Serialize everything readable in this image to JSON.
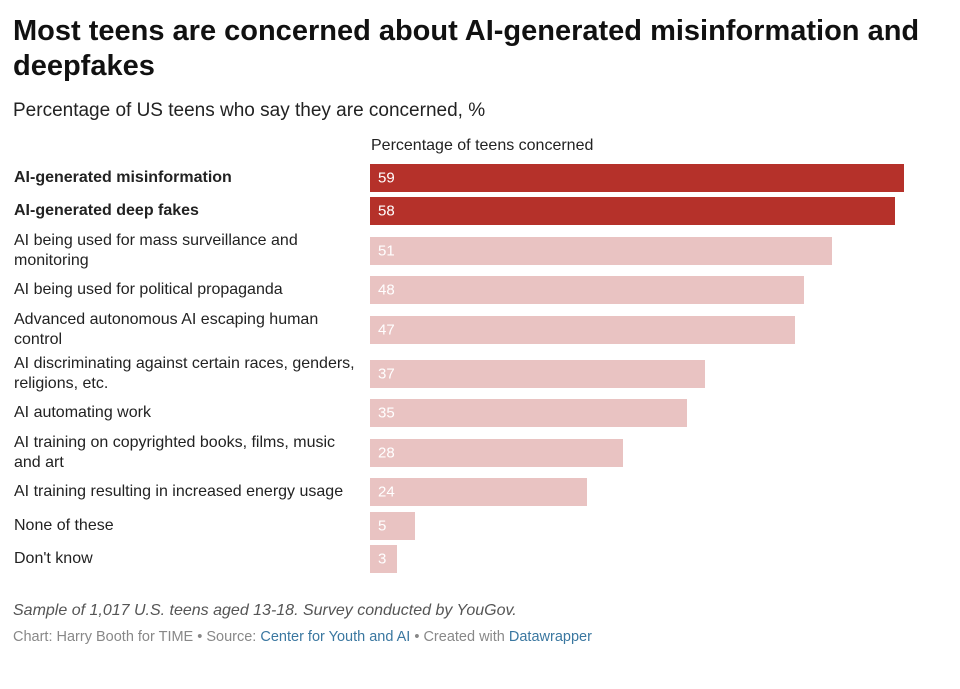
{
  "chart_data": {
    "type": "bar",
    "title": "Most teens are concerned about AI-generated misinformation and deepfakes",
    "subtitle": "Percentage of US teens who say they are concerned, %",
    "column_header": "Percentage of teens concerned",
    "categories": [
      "AI-generated misinformation",
      "AI-generated deep fakes",
      "AI being used for mass surveillance and monitoring",
      "AI being used for political propaganda",
      "Advanced autonomous AI escaping human control",
      "AI discriminating against certain races, genders, religions, etc.",
      "AI automating work",
      "AI training on copyrighted books, films, music and art",
      "AI training resulting in increased energy usage",
      "None of these",
      "Don't know"
    ],
    "values": [
      59,
      58,
      51,
      48,
      47,
      37,
      35,
      28,
      24,
      5,
      3
    ],
    "highlighted": [
      true,
      true,
      false,
      false,
      false,
      false,
      false,
      false,
      false,
      false,
      false
    ],
    "xlim": [
      0,
      59
    ],
    "colors": {
      "highlight": "#b5312a",
      "muted": "#e9c3c2"
    }
  },
  "footer": {
    "note": "Sample of 1,017 U.S. teens aged 13-18. Survey conducted by YouGov.",
    "credit_prefix": "Chart: Harry Booth for TIME • Source: ",
    "source_link": "Center for Youth and AI",
    "credit_mid": " • Created with ",
    "tool_link": "Datawrapper"
  }
}
